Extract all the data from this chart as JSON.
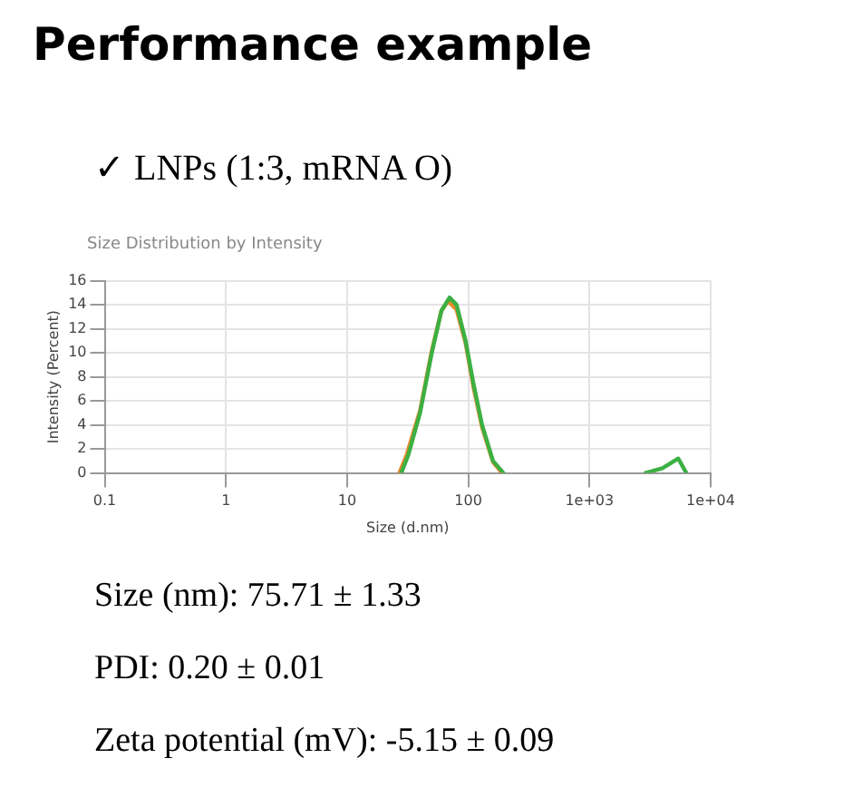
{
  "chart_data": {
    "type": "line",
    "title": "Performance example",
    "subtitle": "✓ LNPs (1:3, mRNA O)",
    "xlabel": "Size (d.nm)",
    "ylabel": "Intensity (Percent)",
    "annotations": [
      "Size Distribution by Intensity",
      "Size (nm): 75.71 ± 1.33",
      "PDI: 0.20 ± 0.01",
      "Zeta potential (mV): -5.15 ± 0.09"
    ],
    "log": "x",
    "xlim": [
      0.1,
      10000
    ],
    "xticks": [
      0.1,
      1,
      10,
      100,
      {
        "value": 1000,
        "label": "1e+03"
      },
      {
        "value": 10000,
        "label": "1e+04"
      }
    ],
    "ylim": [
      0,
      16
    ],
    "yticks": [
      0,
      2,
      4,
      6,
      8,
      10,
      12,
      14,
      16
    ],
    "grid": true,
    "marker": "none",
    "series": [
      {
        "color": "#e8892a",
        "x": [
          27,
          31,
          40,
          50,
          60,
          68,
          80,
          95,
          110,
          130,
          160,
          190
        ],
        "values": [
          0,
          1.5,
          5.2,
          10.2,
          13.5,
          14.3,
          13.6,
          10.8,
          7.2,
          3.8,
          0.9,
          0
        ]
      },
      {
        "color": "#3cb043",
        "x": [
          28,
          32,
          40,
          50,
          60,
          70,
          80,
          95,
          110,
          130,
          160,
          195,
          null,
          2900,
          4000,
          5400,
          6300
        ],
        "values": [
          0,
          1.5,
          5,
          10,
          13.5,
          14.6,
          14,
          11,
          7.5,
          4,
          1,
          0,
          null,
          0,
          0.4,
          1.2,
          0
        ]
      }
    ]
  }
}
